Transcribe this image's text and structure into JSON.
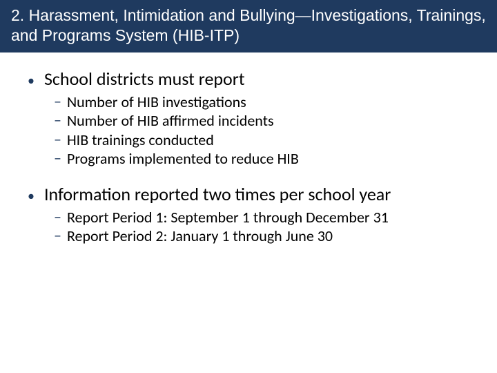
{
  "colors": {
    "title_bg": "#1f3a5f",
    "title_text": "#ffffff",
    "body_text": "#000000",
    "bullet_marker": "#1f3a5f",
    "background": "#ffffff"
  },
  "typography": {
    "title_font": "Arial",
    "body_font": "Calibri",
    "title_fontsize_pt": 18,
    "l1_fontsize_pt": 20,
    "l2_fontsize_pt": 17
  },
  "slide": {
    "title": "2. Harassment, Intimidation and Bullying—Investigations, Trainings, and Programs System (HIB-ITP)",
    "bullets": [
      {
        "text": "School districts must report",
        "sub": [
          "Number of HIB investigations",
          "Number of HIB affirmed incidents",
          "HIB trainings conducted",
          "Programs implemented to reduce HIB"
        ]
      },
      {
        "text": "Information reported two times per school year",
        "sub": [
          "Report Period 1: September 1 through December 31",
          "Report Period 2: January 1 through June 30"
        ]
      }
    ]
  },
  "markers": {
    "l1": "•",
    "l2": "–"
  }
}
